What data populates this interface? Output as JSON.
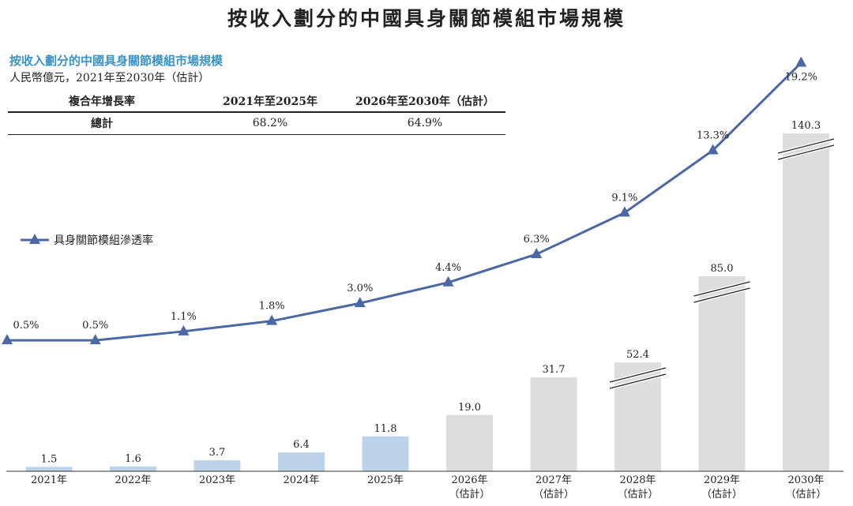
{
  "title": "按收入劃分的中國具身關節模組市場規模",
  "subtitle": "按收入劃分的中國具身關節模組市場規模",
  "unit_note": "人民幣億元，2021年至2030年（估計）",
  "cagr_table": {
    "header": [
      "複合年增長率",
      "2021年至2025年",
      "2026年至2030年（估計）"
    ],
    "rows": [
      {
        "label": "總計",
        "values": [
          "68.2%",
          "64.9%"
        ]
      }
    ]
  },
  "colors": {
    "bar_historical": "#bcd3ea",
    "bar_forecast": "#dcdddf",
    "line": "#4b68a4",
    "subtitle": "#3a93c6"
  },
  "chart_data": {
    "type": "bar",
    "categories": [
      "2021年",
      "2022年",
      "2023年",
      "2024年",
      "2025年",
      "2026年",
      "2027年",
      "2028年",
      "2029年",
      "2030年"
    ],
    "category_sublabels": [
      "",
      "",
      "",
      "",
      "",
      "（估計）",
      "（估計）",
      "（估計）",
      "（估計）",
      "（估計）"
    ],
    "series": [
      {
        "type": "bar",
        "values": [
          1.5,
          1.6,
          3.7,
          6.4,
          11.8,
          19.0,
          31.7,
          52.4,
          85.0,
          140.3
        ],
        "labels": [
          "1.5",
          "1.6",
          "3.7",
          "6.4",
          "11.8",
          "19.0",
          "31.7",
          "52.4",
          "85.0",
          "140.3"
        ],
        "forecast_from_index": 5,
        "broken_axis_indices": [
          7,
          8,
          9
        ]
      },
      {
        "type": "line",
        "name": "具身關節模組滲透率",
        "values": [
          0.5,
          0.5,
          1.1,
          1.8,
          3.0,
          4.4,
          6.3,
          9.1,
          13.3,
          19.2
        ],
        "labels": [
          "0.5%",
          "0.5%",
          "1.1%",
          "1.8%",
          "3.0%",
          "4.4%",
          "6.3%",
          "9.1%",
          "13.3%",
          "19.2%"
        ],
        "marker": "triangle"
      }
    ],
    "legend_position": "left",
    "grid": false
  }
}
